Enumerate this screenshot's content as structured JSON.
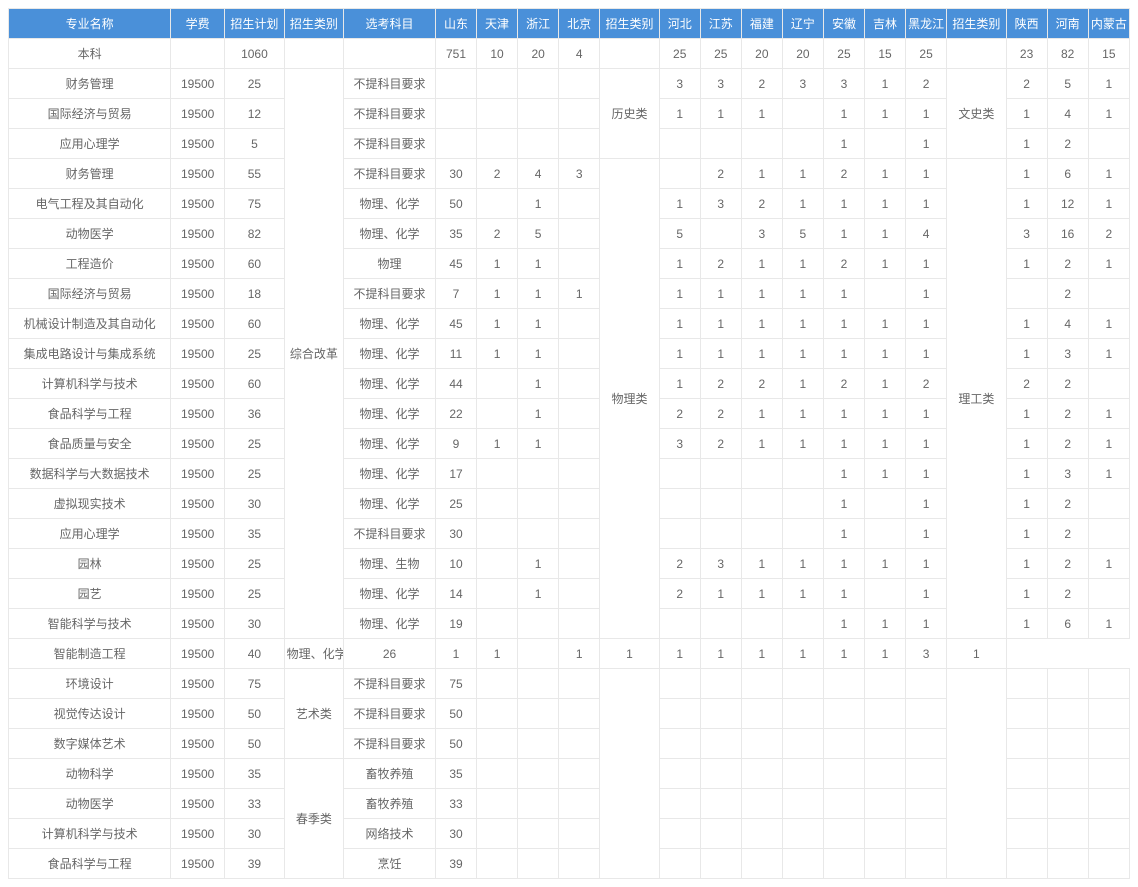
{
  "headers": [
    "专业名称",
    "学费",
    "招生计划",
    "招生类别",
    "选考科目",
    "山东",
    "天津",
    "浙江",
    "北京",
    "招生类别",
    "河北",
    "江苏",
    "福建",
    "辽宁",
    "安徽",
    "吉林",
    "黑龙江",
    "招生类别",
    "陕西",
    "河南",
    "内蒙古"
  ],
  "cat1": {
    "span1": 19,
    "label1": "综合改革",
    "span2": 3,
    "label2": "艺术类",
    "span3": 4,
    "label3": "春季类"
  },
  "cat2": {
    "span1": 3,
    "label1": "历史类",
    "span2": 16,
    "label2": "物理类"
  },
  "cat3": {
    "span1": 3,
    "label1": "文史类",
    "span2": 16,
    "label2": "理工类"
  },
  "rows": [
    {
      "name": "本科",
      "fee": "",
      "plan": "1060",
      "cat": null,
      "subj": "",
      "p": [
        "751",
        "10",
        "20",
        "4"
      ],
      "cat2": null,
      "q": [
        "25",
        "25",
        "20",
        "20",
        "25",
        "15",
        "25"
      ],
      "cat3": null,
      "r": [
        "23",
        "82",
        "15"
      ]
    },
    {
      "name": "财务管理",
      "fee": "19500",
      "plan": "25",
      "cat": "start1",
      "subj": "不提科目要求",
      "p": [
        "",
        "",
        "",
        ""
      ],
      "cat2": "start1",
      "q": [
        "3",
        "3",
        "2",
        "3",
        "3",
        "1",
        "2"
      ],
      "cat3": "start1",
      "r": [
        "2",
        "5",
        "1"
      ]
    },
    {
      "name": "国际经济与贸易",
      "fee": "19500",
      "plan": "12",
      "subj": "不提科目要求",
      "p": [
        "",
        "",
        "",
        ""
      ],
      "q": [
        "1",
        "1",
        "1",
        "",
        "1",
        "1",
        "1"
      ],
      "r": [
        "1",
        "4",
        "1"
      ]
    },
    {
      "name": "应用心理学",
      "fee": "19500",
      "plan": "5",
      "subj": "不提科目要求",
      "p": [
        "",
        "",
        "",
        ""
      ],
      "q": [
        "",
        "",
        "",
        "",
        "1",
        "",
        "1"
      ],
      "r": [
        "1",
        "2",
        ""
      ]
    },
    {
      "name": "财务管理",
      "fee": "19500",
      "plan": "55",
      "subj": "不提科目要求",
      "p": [
        "30",
        "2",
        "4",
        "3"
      ],
      "cat2": "start2",
      "q": [
        "",
        "2",
        "1",
        "1",
        "2",
        "1",
        "1"
      ],
      "cat3": "start2",
      "r": [
        "1",
        "6",
        "1"
      ]
    },
    {
      "name": "电气工程及其自动化",
      "fee": "19500",
      "plan": "75",
      "subj": "物理、化学",
      "p": [
        "50",
        "",
        "1",
        ""
      ],
      "q": [
        "1",
        "3",
        "2",
        "1",
        "1",
        "1",
        "1"
      ],
      "r": [
        "1",
        "12",
        "1"
      ]
    },
    {
      "name": "动物医学",
      "fee": "19500",
      "plan": "82",
      "subj": "物理、化学",
      "p": [
        "35",
        "2",
        "5",
        ""
      ],
      "q": [
        "5",
        "",
        "3",
        "5",
        "1",
        "1",
        "4"
      ],
      "r": [
        "3",
        "16",
        "2"
      ]
    },
    {
      "name": "工程造价",
      "fee": "19500",
      "plan": "60",
      "subj": "物理",
      "p": [
        "45",
        "1",
        "1",
        ""
      ],
      "q": [
        "1",
        "2",
        "1",
        "1",
        "2",
        "1",
        "1"
      ],
      "r": [
        "1",
        "2",
        "1"
      ]
    },
    {
      "name": "国际经济与贸易",
      "fee": "19500",
      "plan": "18",
      "subj": "不提科目要求",
      "p": [
        "7",
        "1",
        "1",
        "1"
      ],
      "q": [
        "1",
        "1",
        "1",
        "1",
        "1",
        "",
        "1"
      ],
      "r": [
        "",
        "2",
        ""
      ]
    },
    {
      "name": "机械设计制造及其自动化",
      "fee": "19500",
      "plan": "60",
      "subj": "物理、化学",
      "p": [
        "45",
        "1",
        "1",
        ""
      ],
      "q": [
        "1",
        "1",
        "1",
        "1",
        "1",
        "1",
        "1"
      ],
      "r": [
        "1",
        "4",
        "1"
      ]
    },
    {
      "name": "集成电路设计与集成系统",
      "fee": "19500",
      "plan": "25",
      "subj": "物理、化学",
      "p": [
        "11",
        "1",
        "1",
        ""
      ],
      "q": [
        "1",
        "1",
        "1",
        "1",
        "1",
        "1",
        "1"
      ],
      "r": [
        "1",
        "3",
        "1"
      ]
    },
    {
      "name": "计算机科学与技术",
      "fee": "19500",
      "plan": "60",
      "subj": "物理、化学",
      "p": [
        "44",
        "",
        "1",
        ""
      ],
      "q": [
        "1",
        "2",
        "2",
        "1",
        "2",
        "1",
        "2"
      ],
      "r": [
        "2",
        "2",
        ""
      ]
    },
    {
      "name": "食品科学与工程",
      "fee": "19500",
      "plan": "36",
      "subj": "物理、化学",
      "p": [
        "22",
        "",
        "1",
        ""
      ],
      "q": [
        "2",
        "2",
        "1",
        "1",
        "1",
        "1",
        "1"
      ],
      "r": [
        "1",
        "2",
        "1"
      ]
    },
    {
      "name": "食品质量与安全",
      "fee": "19500",
      "plan": "25",
      "subj": "物理、化学",
      "p": [
        "9",
        "1",
        "1",
        ""
      ],
      "q": [
        "3",
        "2",
        "1",
        "1",
        "1",
        "1",
        "1"
      ],
      "r": [
        "1",
        "2",
        "1"
      ]
    },
    {
      "name": "数据科学与大数据技术",
      "fee": "19500",
      "plan": "25",
      "subj": "物理、化学",
      "p": [
        "17",
        "",
        "",
        ""
      ],
      "q": [
        "",
        "",
        "",
        "",
        "1",
        "1",
        "1"
      ],
      "r": [
        "1",
        "3",
        "1"
      ]
    },
    {
      "name": "虚拟现实技术",
      "fee": "19500",
      "plan": "30",
      "subj": "物理、化学",
      "p": [
        "25",
        "",
        "",
        ""
      ],
      "q": [
        "",
        "",
        "",
        "",
        "1",
        "",
        "1"
      ],
      "r": [
        "1",
        "2",
        ""
      ]
    },
    {
      "name": "应用心理学",
      "fee": "19500",
      "plan": "35",
      "subj": "不提科目要求",
      "p": [
        "30",
        "",
        "",
        ""
      ],
      "q": [
        "",
        "",
        "",
        "",
        "1",
        "",
        "1"
      ],
      "r": [
        "1",
        "2",
        ""
      ]
    },
    {
      "name": "园林",
      "fee": "19500",
      "plan": "25",
      "subj": "物理、生物",
      "p": [
        "10",
        "",
        "1",
        ""
      ],
      "q": [
        "2",
        "3",
        "1",
        "1",
        "1",
        "1",
        "1"
      ],
      "r": [
        "1",
        "2",
        "1"
      ]
    },
    {
      "name": "园艺",
      "fee": "19500",
      "plan": "25",
      "subj": "物理、化学",
      "p": [
        "14",
        "",
        "1",
        ""
      ],
      "q": [
        "2",
        "1",
        "1",
        "1",
        "1",
        "",
        "1"
      ],
      "r": [
        "1",
        "2",
        ""
      ]
    },
    {
      "name": "智能科学与技术",
      "fee": "19500",
      "plan": "30",
      "subj": "物理、化学",
      "p": [
        "19",
        "",
        "",
        ""
      ],
      "q": [
        "",
        "",
        "",
        "",
        "1",
        "1",
        "1"
      ],
      "r": [
        "1",
        "6",
        "1"
      ]
    },
    {
      "name": "智能制造工程",
      "fee": "19500",
      "plan": "40",
      "subj": "物理、化学",
      "p": [
        "26",
        "1",
        "1",
        ""
      ],
      "q": [
        "1",
        "1",
        "1",
        "1",
        "1",
        "1",
        "1"
      ],
      "r": [
        "1",
        "3",
        "1"
      ]
    },
    {
      "name": "环境设计",
      "fee": "19500",
      "plan": "75",
      "cat": "start2",
      "subj": "不提科目要求",
      "p": [
        "75",
        "",
        "",
        ""
      ],
      "cat2": "blank",
      "q": [
        "",
        "",
        "",
        "",
        "",
        "",
        ""
      ],
      "cat3": "blank",
      "r": [
        "",
        "",
        ""
      ]
    },
    {
      "name": "视觉传达设计",
      "fee": "19500",
      "plan": "50",
      "subj": "不提科目要求",
      "p": [
        "50",
        "",
        "",
        ""
      ],
      "q": [
        "",
        "",
        "",
        "",
        "",
        "",
        ""
      ],
      "r": [
        "",
        "",
        ""
      ]
    },
    {
      "name": "数字媒体艺术",
      "fee": "19500",
      "plan": "50",
      "subj": "不提科目要求",
      "p": [
        "50",
        "",
        "",
        ""
      ],
      "q": [
        "",
        "",
        "",
        "",
        "",
        "",
        ""
      ],
      "r": [
        "",
        "",
        ""
      ]
    },
    {
      "name": "动物科学",
      "fee": "19500",
      "plan": "35",
      "cat": "start3",
      "subj": "畜牧养殖",
      "p": [
        "35",
        "",
        "",
        ""
      ],
      "q": [
        "",
        "",
        "",
        "",
        "",
        "",
        ""
      ],
      "r": [
        "",
        "",
        ""
      ]
    },
    {
      "name": "动物医学",
      "fee": "19500",
      "plan": "33",
      "subj": "畜牧养殖",
      "p": [
        "33",
        "",
        "",
        ""
      ],
      "q": [
        "",
        "",
        "",
        "",
        "",
        "",
        ""
      ],
      "r": [
        "",
        "",
        ""
      ]
    },
    {
      "name": "计算机科学与技术",
      "fee": "19500",
      "plan": "30",
      "subj": "网络技术",
      "p": [
        "30",
        "",
        "",
        ""
      ],
      "q": [
        "",
        "",
        "",
        "",
        "",
        "",
        ""
      ],
      "r": [
        "",
        "",
        ""
      ]
    },
    {
      "name": "食品科学与工程",
      "fee": "19500",
      "plan": "39",
      "subj": "烹饪",
      "p": [
        "39",
        "",
        "",
        ""
      ],
      "q": [
        "",
        "",
        "",
        "",
        "",
        "",
        ""
      ],
      "r": [
        "",
        "",
        ""
      ]
    }
  ]
}
